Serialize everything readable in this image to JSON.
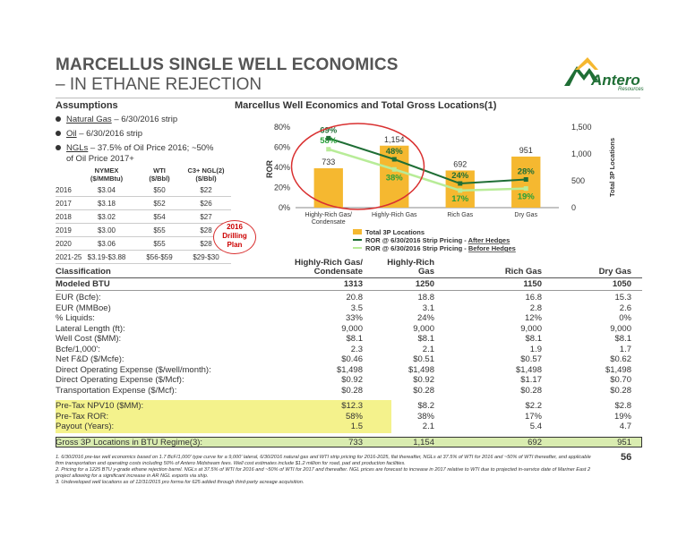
{
  "title": {
    "line1": "MARCELLUS SINGLE WELL ECONOMICS",
    "line2": "– IN ETHANE REJECTION"
  },
  "logo": {
    "name": "Antero",
    "sub": "Resources",
    "icon": "mountain-logo-icon"
  },
  "assumptions": {
    "heading": "Assumptions",
    "bullets": [
      {
        "link": "Natural Gas",
        "rest": " – 6/30/2016 strip"
      },
      {
        "link": "Oil",
        "rest": " – 6/30/2016 strip"
      },
      {
        "link": "NGLs",
        "rest": " – 37.5% of Oil Price 2016; ~50%"
      },
      {
        "link": "",
        "rest": "of Oil Price 2017+"
      }
    ],
    "price_table": {
      "headers": [
        "NYMEX ($/MMBtu)",
        "WTI ($/Bbl)",
        "C3+ NGL(2) ($/Bbl)"
      ],
      "header_lines": [
        [
          "NYMEX",
          "($/MMBtu)"
        ],
        [
          "WTI",
          "($/Bbl)"
        ],
        [
          "C3+ NGL(2)",
          "($/Bbl)"
        ]
      ],
      "rows": [
        [
          "2016",
          "$3.04",
          "$50",
          "$22"
        ],
        [
          "2017",
          "$3.18",
          "$52",
          "$26"
        ],
        [
          "2018",
          "$3.02",
          "$54",
          "$27"
        ],
        [
          "2019",
          "$3.00",
          "$55",
          "$28"
        ],
        [
          "2020",
          "$3.06",
          "$55",
          "$28"
        ],
        [
          "2021-25",
          "$3.19-$3.88",
          "$56-$59",
          "$29-$30"
        ]
      ]
    }
  },
  "callout": {
    "line1": "2016",
    "line2": "Drilling",
    "line3": "Plan"
  },
  "chart_title": "Marcellus Well Economics and Total Gross Locations(1)",
  "chart_data": {
    "type": "bar",
    "categories": [
      "Highly-Rich Gas/ Condensate",
      "Highly-Rich Gas",
      "Rich Gas",
      "Dry Gas"
    ],
    "category_lines": [
      [
        "Highly-Rich Gas/",
        "Condensate"
      ],
      [
        "Highly-Rich Gas"
      ],
      [
        "Rich Gas"
      ],
      [
        "Dry Gas"
      ]
    ],
    "series": [
      {
        "name": "Total 3P Locations",
        "type": "bar",
        "axis": "right",
        "values": [
          733,
          1154,
          692,
          951
        ],
        "color": "#f5b830"
      },
      {
        "name": "ROR @ 6/30/2016 Strip Pricing - After Hedges",
        "type": "line",
        "axis": "left",
        "values": [
          69,
          48,
          24,
          28
        ],
        "color": "#1f6e35"
      },
      {
        "name": "ROR @ 6/30/2016 Strip Pricing - Before Hedges",
        "type": "line",
        "axis": "left",
        "values": [
          58,
          38,
          17,
          19
        ],
        "color": "#b8ec98"
      }
    ],
    "bar_labels": [
      "733",
      "1,154",
      "692",
      "951"
    ],
    "after_labels": [
      "69%",
      "48%",
      "24%",
      "28%"
    ],
    "before_labels": [
      "58%",
      "38%",
      "17%",
      "19%"
    ],
    "ylabel": "ROR",
    "y2label": "Total 3P Locations",
    "ylim": [
      0,
      80
    ],
    "y2lim": [
      0,
      1500
    ],
    "yticks": [
      "0%",
      "20%",
      "40%",
      "60%",
      "80%"
    ],
    "y2ticks": [
      "0",
      "500",
      "1,000",
      "1,500"
    ],
    "legend": [
      {
        "text": "Total 3P Locations",
        "pre": "",
        "emph": ""
      },
      {
        "text": "ROR @ 6/30/2016 Strip Pricing - ",
        "emph": "After Hedges"
      },
      {
        "text": "ROR @ 6/30/2016 Strip Pricing - ",
        "emph": "Before Hedges"
      }
    ],
    "legend_position": "bottom"
  },
  "main_table": {
    "header_top": [
      "",
      "Highly-Rich Gas/",
      "Highly-Rich",
      "",
      ""
    ],
    "header": [
      "Classification",
      "Condensate",
      "Gas",
      "Rich Gas",
      "Dry Gas"
    ],
    "modeled": [
      "Modeled BTU",
      "1313",
      "1250",
      "1150",
      "1050"
    ],
    "rows": [
      [
        "EUR (Bcfe):",
        "20.8",
        "18.8",
        "16.8",
        "15.3"
      ],
      [
        "EUR (MMBoe)",
        "3.5",
        "3.1",
        "2.8",
        "2.6"
      ],
      [
        " % Liquids:",
        "33%",
        "24%",
        "12%",
        "0%"
      ],
      [
        "Lateral Length (ft):",
        "9,000",
        "9,000",
        "9,000",
        "9,000"
      ],
      [
        "Well Cost ($MM):",
        "$8.1",
        "$8.1",
        "$8.1",
        "$8.1"
      ],
      [
        "Bcfe/1,000':",
        "2.3",
        "2.1",
        "1.9",
        "1.7"
      ],
      [
        "Net F&D ($/Mcfe):",
        "$0.46",
        "$0.51",
        "$0.57",
        "$0.62"
      ],
      [
        "Direct Operating Expense ($/well/month):",
        "$1,498",
        "$1,498",
        "$1,498",
        "$1,498"
      ],
      [
        "Direct Operating Expense ($/Mcf):",
        "$0.92",
        "$0.92",
        "$1.17",
        "$0.70"
      ],
      [
        "Transportation Expense ($/Mcf):",
        "$0.28",
        "$0.28",
        "$0.28",
        "$0.28"
      ]
    ],
    "econ_rows": [
      [
        "Pre-Tax NPV10 ($MM):",
        "$12.3",
        "$8.2",
        "$2.2",
        "$2.8"
      ],
      [
        "Pre-Tax ROR:",
        "58%",
        "38%",
        "17%",
        "19%"
      ],
      [
        "Payout (Years):",
        "1.5",
        "2.1",
        "5.4",
        "4.7"
      ]
    ],
    "locations": [
      "Gross 3P Locations in BTU Regime(3):",
      "733",
      "1,154",
      "692",
      "951"
    ]
  },
  "footnotes": [
    "1. 6/30/2016 pre-tax well economics based on 1.7 BcF/1,000' type curve for a 9,000' lateral, 6/30/2016 natural gas and WTI strip pricing for 2016-2025, flat thereafter, NGLs at 37.5% of WTI for 2016 and ~50% of WTI thereafter, and applicable firm transportation and operating costs including 50% of Antero Midstream fees. Well cost estimates include $1.2 million for road, pad and production facilities.",
    "2. Pricing for a 1225 BTU y-grade ethane rejection barrel. NGLs at 37.5% of WTI for 2016 and ~50% of WTI for 2017 and thereafter. NGL prices are forecast to increase in 2017 relative to WTI due to projected in-service date of Mariner East 2 project allowing for a significant increase in AR NGL exports via ship.",
    "3. Undeveloped well locations as of 12/31/2015 pro forma for 625 added through third-party acreage acquisition."
  ],
  "page_number": "56",
  "colors": {
    "accent_green": "#1f6e35",
    "light_green": "#b8ec98",
    "bar_gold": "#f5b830",
    "highlight_yellow": "#f4f28c",
    "callout_red": "#d93030"
  }
}
